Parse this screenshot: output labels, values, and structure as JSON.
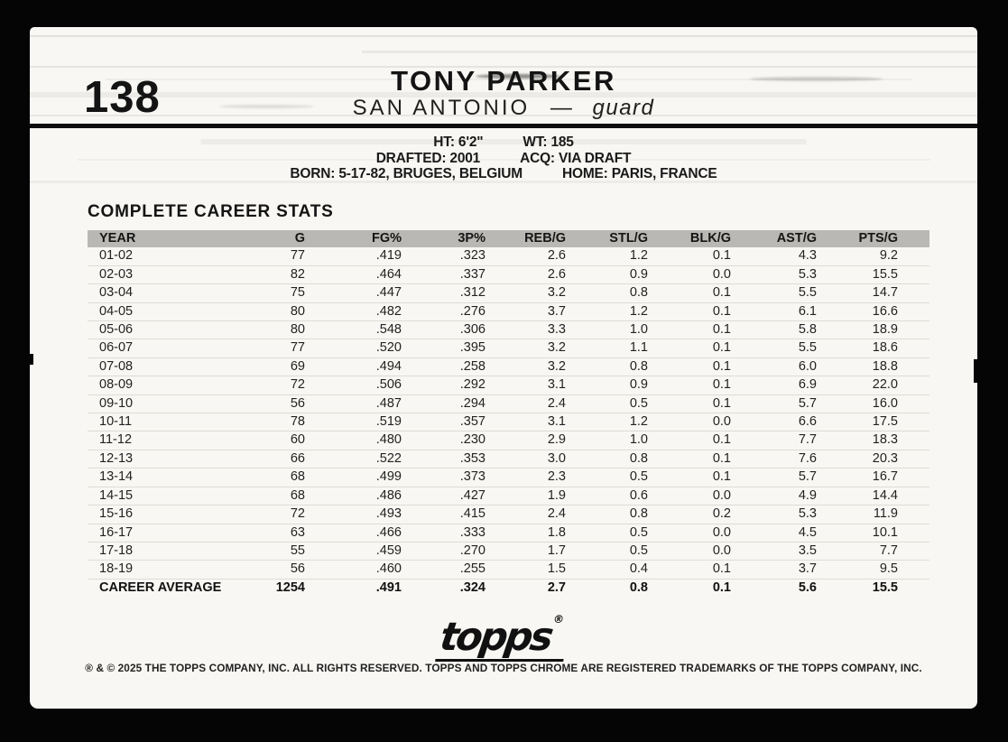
{
  "card": {
    "number": "138",
    "player": "TONY PARKER",
    "team": "SAN ANTONIO",
    "separator": "—",
    "position": "guard",
    "bio": {
      "line1_left": "HT: 6'2\"",
      "line1_right": "WT: 185",
      "line2_left": "DRAFTED: 2001",
      "line2_right": "ACQ: VIA DRAFT",
      "line3_left": "BORN: 5-17-82, BRUGES, BELGIUM",
      "line3_right": "HOME: PARIS, FRANCE"
    },
    "stats_title": "COMPLETE CAREER STATS",
    "logo_text": "topps",
    "logo_reg": "®",
    "copyright": "® & © 2025 THE TOPPS COMPANY, INC. ALL RIGHTS RESERVED. TOPPS AND TOPPS CHROME ARE REGISTERED TRADEMARKS OF THE TOPPS COMPANY, INC."
  },
  "chart_data": {
    "type": "table",
    "title": "COMPLETE CAREER STATS",
    "columns": [
      "YEAR",
      "G",
      "FG%",
      "3P%",
      "REB/G",
      "STL/G",
      "BLK/G",
      "AST/G",
      "PTS/G"
    ],
    "rows": [
      [
        "01-02",
        "77",
        ".419",
        ".323",
        "2.6",
        "1.2",
        "0.1",
        "4.3",
        "9.2"
      ],
      [
        "02-03",
        "82",
        ".464",
        ".337",
        "2.6",
        "0.9",
        "0.0",
        "5.3",
        "15.5"
      ],
      [
        "03-04",
        "75",
        ".447",
        ".312",
        "3.2",
        "0.8",
        "0.1",
        "5.5",
        "14.7"
      ],
      [
        "04-05",
        "80",
        ".482",
        ".276",
        "3.7",
        "1.2",
        "0.1",
        "6.1",
        "16.6"
      ],
      [
        "05-06",
        "80",
        ".548",
        ".306",
        "3.3",
        "1.0",
        "0.1",
        "5.8",
        "18.9"
      ],
      [
        "06-07",
        "77",
        ".520",
        ".395",
        "3.2",
        "1.1",
        "0.1",
        "5.5",
        "18.6"
      ],
      [
        "07-08",
        "69",
        ".494",
        ".258",
        "3.2",
        "0.8",
        "0.1",
        "6.0",
        "18.8"
      ],
      [
        "08-09",
        "72",
        ".506",
        ".292",
        "3.1",
        "0.9",
        "0.1",
        "6.9",
        "22.0"
      ],
      [
        "09-10",
        "56",
        ".487",
        ".294",
        "2.4",
        "0.5",
        "0.1",
        "5.7",
        "16.0"
      ],
      [
        "10-11",
        "78",
        ".519",
        ".357",
        "3.1",
        "1.2",
        "0.0",
        "6.6",
        "17.5"
      ],
      [
        "11-12",
        "60",
        ".480",
        ".230",
        "2.9",
        "1.0",
        "0.1",
        "7.7",
        "18.3"
      ],
      [
        "12-13",
        "66",
        ".522",
        ".353",
        "3.0",
        "0.8",
        "0.1",
        "7.6",
        "20.3"
      ],
      [
        "13-14",
        "68",
        ".499",
        ".373",
        "2.3",
        "0.5",
        "0.1",
        "5.7",
        "16.7"
      ],
      [
        "14-15",
        "68",
        ".486",
        ".427",
        "1.9",
        "0.6",
        "0.0",
        "4.9",
        "14.4"
      ],
      [
        "15-16",
        "72",
        ".493",
        ".415",
        "2.4",
        "0.8",
        "0.2",
        "5.3",
        "11.9"
      ],
      [
        "16-17",
        "63",
        ".466",
        ".333",
        "1.8",
        "0.5",
        "0.0",
        "4.5",
        "10.1"
      ],
      [
        "17-18",
        "55",
        ".459",
        ".270",
        "1.7",
        "0.5",
        "0.0",
        "3.5",
        "7.7"
      ],
      [
        "18-19",
        "56",
        ".460",
        ".255",
        "1.5",
        "0.4",
        "0.1",
        "3.7",
        "9.5"
      ]
    ],
    "career_average": [
      "CAREER AVERAGE",
      "1254",
      ".491",
      ".324",
      "2.7",
      "0.8",
      "0.1",
      "5.6",
      "15.5"
    ]
  },
  "colors": {
    "background": "#050505",
    "card_bg": "#f8f7f3",
    "table_header_bg": "#b9b8b4",
    "text": "#141414",
    "row_divider": "#dddcd6"
  }
}
